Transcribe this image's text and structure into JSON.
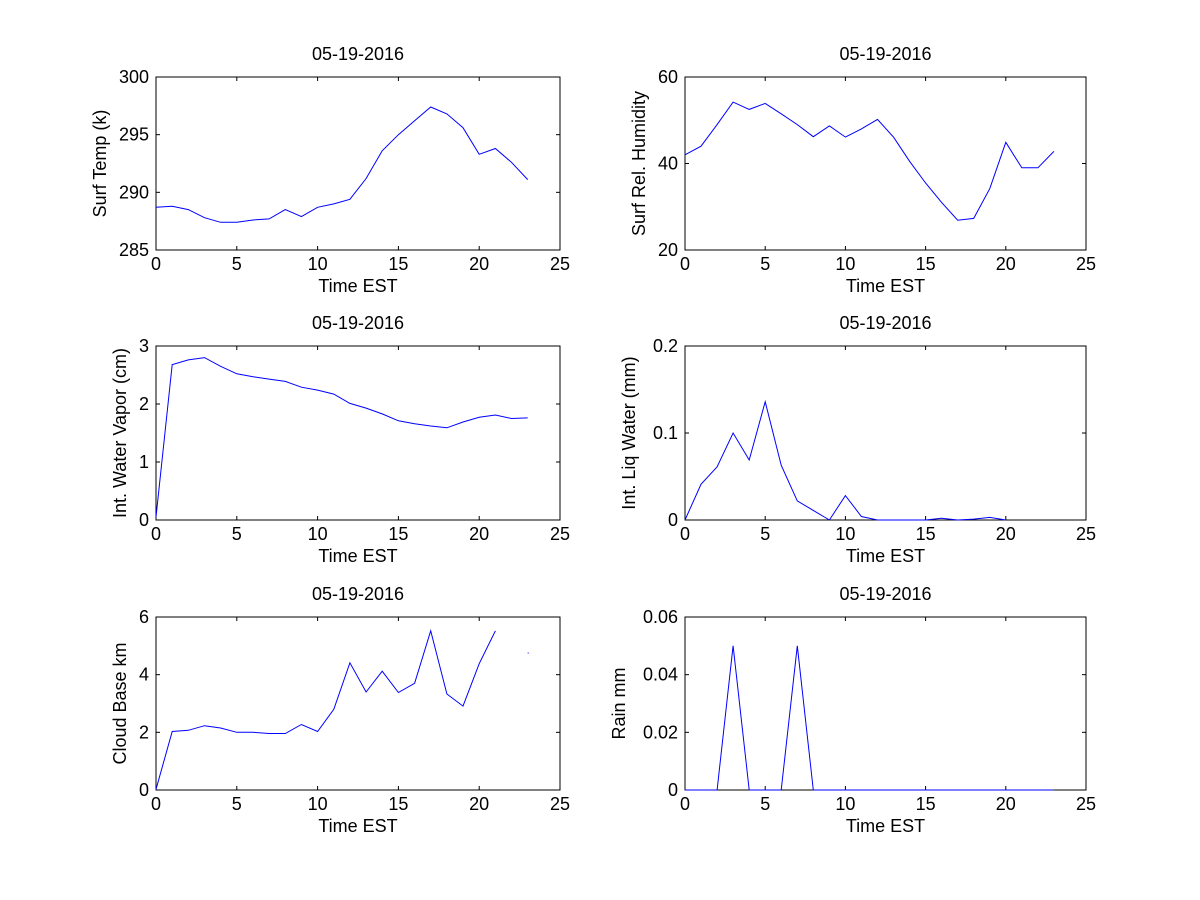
{
  "chart_data": [
    {
      "type": "line",
      "title": "05-19-2016",
      "xlabel": "Time EST",
      "ylabel": "Surf Temp (k)",
      "xlim": [
        0,
        25
      ],
      "ylim": [
        285,
        300
      ],
      "xticks": [
        0,
        5,
        10,
        15,
        20,
        25
      ],
      "yticks": [
        285,
        290,
        295,
        300
      ],
      "series": [
        {
          "name": "Surf Temp",
          "color": "#0000ff",
          "x": [
            0,
            1,
            2,
            3,
            4,
            5,
            6,
            7,
            8,
            9,
            10,
            11,
            12,
            13,
            14,
            15,
            16,
            17,
            18,
            19,
            20,
            21,
            22,
            23
          ],
          "y": [
            288.7,
            288.8,
            288.5,
            287.8,
            287.4,
            287.4,
            287.6,
            287.7,
            288.5,
            287.9,
            288.7,
            289.0,
            289.4,
            291.2,
            293.6,
            295.0,
            296.2,
            297.4,
            296.8,
            295.6,
            293.3,
            293.8,
            292.6,
            291.1
          ]
        }
      ]
    },
    {
      "type": "line",
      "title": "05-19-2016",
      "xlabel": "Time EST",
      "ylabel": "Surf Rel. Humidity",
      "xlim": [
        0,
        25
      ],
      "ylim": [
        20,
        60
      ],
      "xticks": [
        0,
        5,
        10,
        15,
        20,
        25
      ],
      "yticks": [
        20,
        40,
        60
      ],
      "series": [
        {
          "name": "Surf Rel. Humidity",
          "color": "#0000ff",
          "x": [
            0,
            1,
            2,
            3,
            4,
            5,
            6,
            7,
            8,
            9,
            10,
            11,
            12,
            13,
            14,
            15,
            16,
            17,
            18,
            19,
            20,
            21,
            22,
            23
          ],
          "y": [
            42,
            44,
            49,
            54.2,
            52.5,
            53.9,
            51.5,
            49,
            46.2,
            48.7,
            46.1,
            48.0,
            50.2,
            46.1,
            40.5,
            35.5,
            31.0,
            26.9,
            27.3,
            34.2,
            44.9,
            39.0,
            39.0,
            42.8
          ]
        }
      ]
    },
    {
      "type": "line",
      "title": "05-19-2016",
      "xlabel": "Time EST",
      "ylabel": "Int. Water Vapor (cm)",
      "xlim": [
        0,
        25
      ],
      "ylim": [
        0,
        3
      ],
      "xticks": [
        0,
        5,
        10,
        15,
        20,
        25
      ],
      "yticks": [
        0,
        1,
        2,
        3
      ],
      "series": [
        {
          "name": "Int. Water Vapor",
          "color": "#0000ff",
          "x": [
            0,
            1,
            2,
            3,
            4,
            5,
            6,
            7,
            8,
            9,
            10,
            11,
            12,
            13,
            14,
            15,
            16,
            17,
            18,
            19,
            20,
            21,
            22,
            23
          ],
          "y": [
            0.05,
            2.68,
            2.76,
            2.8,
            2.65,
            2.52,
            2.47,
            2.43,
            2.39,
            2.29,
            2.24,
            2.17,
            2.01,
            1.93,
            1.83,
            1.71,
            1.66,
            1.62,
            1.59,
            1.69,
            1.77,
            1.81,
            1.75,
            1.76
          ]
        }
      ]
    },
    {
      "type": "line",
      "title": "05-19-2016",
      "xlabel": "Time EST",
      "ylabel": "Int. Liq Water (mm)",
      "xlim": [
        0,
        25
      ],
      "ylim": [
        0,
        0.2
      ],
      "xticks": [
        0,
        5,
        10,
        15,
        20,
        25
      ],
      "yticks": [
        0,
        0.1,
        0.2
      ],
      "series": [
        {
          "name": "Int. Liq Water",
          "color": "#0000ff",
          "x": [
            0,
            1,
            2,
            3,
            4,
            5,
            6,
            7,
            8,
            9,
            10,
            11,
            12,
            13,
            14,
            15,
            16,
            17,
            18,
            19,
            20
          ],
          "y": [
            0,
            0.041,
            0.061,
            0.1,
            0.069,
            0.136,
            0.063,
            0.022,
            0.011,
            0,
            0.028,
            0.004,
            0,
            0,
            0,
            0,
            0.002,
            0,
            0.001,
            0.003,
            0
          ]
        }
      ]
    },
    {
      "type": "line",
      "title": "05-19-2016",
      "xlabel": "Time EST",
      "ylabel": "Cloud Base km",
      "xlim": [
        0,
        25
      ],
      "ylim": [
        0,
        6
      ],
      "xticks": [
        0,
        5,
        10,
        15,
        20,
        25
      ],
      "yticks": [
        0,
        2,
        4,
        6
      ],
      "series": [
        {
          "name": "Cloud Base",
          "color": "#0000ff",
          "x": [
            0,
            1,
            2,
            3,
            4,
            5,
            6,
            7,
            8,
            9,
            10,
            11,
            12,
            13,
            14,
            15,
            16,
            17,
            18,
            19,
            20,
            21,
            22,
            23
          ],
          "y": [
            0.02,
            2.03,
            2.07,
            2.23,
            2.15,
            2.0,
            2.0,
            1.96,
            1.96,
            2.27,
            2.03,
            2.8,
            4.41,
            3.4,
            4.12,
            3.38,
            3.7,
            5.52,
            3.33,
            2.91,
            4.38,
            5.52,
            null,
            4.75
          ]
        }
      ]
    },
    {
      "type": "line",
      "title": "05-19-2016",
      "xlabel": "Time EST",
      "ylabel": "Rain mm",
      "xlim": [
        0,
        25
      ],
      "ylim": [
        0,
        0.06
      ],
      "xticks": [
        0,
        5,
        10,
        15,
        20,
        25
      ],
      "yticks": [
        0,
        0.02,
        0.04,
        0.06
      ],
      "series": [
        {
          "name": "Rain",
          "color": "#0000ff",
          "x": [
            0,
            1,
            2,
            3,
            4,
            5,
            6,
            7,
            8,
            9,
            10,
            11,
            12,
            13,
            14,
            15,
            16,
            17,
            18,
            19,
            20,
            21,
            22,
            23
          ],
          "y": [
            0,
            0,
            0,
            0.05,
            0,
            0,
            0,
            0.05,
            0,
            0,
            0,
            0,
            0,
            0,
            0,
            0,
            0,
            0,
            0,
            0,
            0,
            0,
            0,
            0
          ]
        }
      ]
    }
  ]
}
